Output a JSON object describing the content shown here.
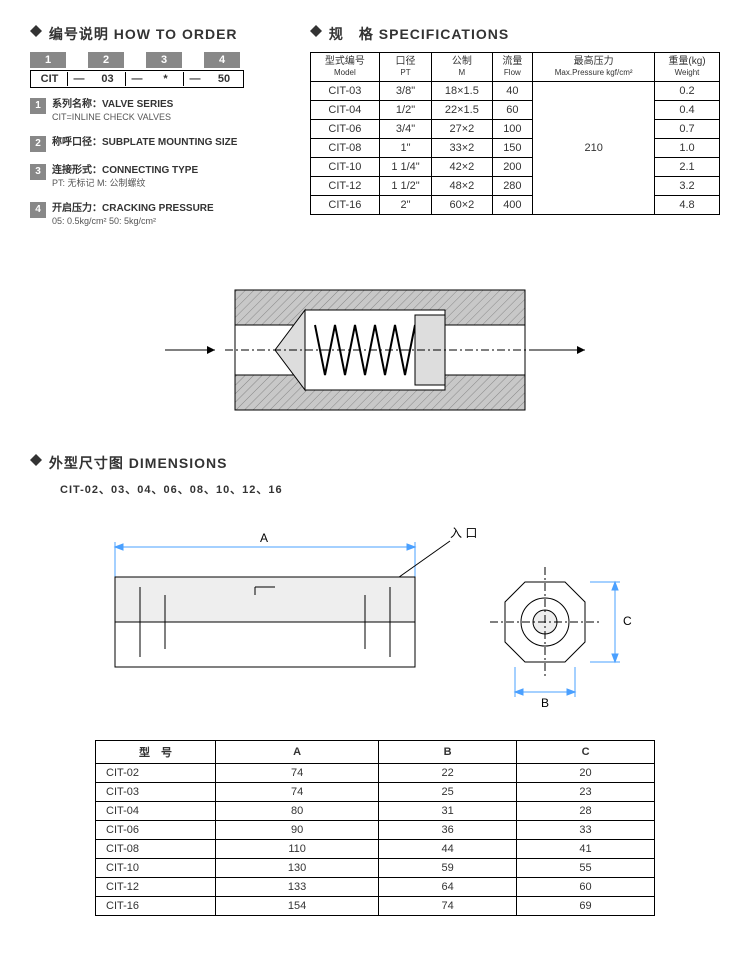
{
  "howto": {
    "title_cn": "编号说明",
    "title_en": "HOW TO ORDER",
    "numbers": [
      "1",
      "2",
      "3",
      "4"
    ],
    "codes": [
      "CIT",
      "—",
      "03",
      "—",
      "*",
      "—",
      "50"
    ],
    "legend": [
      {
        "n": "1",
        "cn": "系列名称：",
        "en": "VALVE SERIES",
        "sub": "CIT=INLINE CHECK VALVES"
      },
      {
        "n": "2",
        "cn": "称呼口径：",
        "en": "SUBPLATE MOUNTING SIZE",
        "sub": ""
      },
      {
        "n": "3",
        "cn": "连接形式：",
        "en": "CONNECTING TYPE",
        "sub": "PT: 无标记  M: 公制螺纹"
      },
      {
        "n": "4",
        "cn": "开启压力：",
        "en": "CRACKING PRESSURE",
        "sub": "05: 0.5kg/cm²  50: 5kg/cm²"
      }
    ]
  },
  "spec": {
    "title_cn": "规　格",
    "title_en": "SPECIFICATIONS",
    "cols": [
      {
        "cn": "型式编号",
        "en": "Model"
      },
      {
        "cn": "口径",
        "en": "PT"
      },
      {
        "cn": "公制",
        "en": "M"
      },
      {
        "cn": "流量",
        "en": "Flow"
      },
      {
        "cn": "最高压力",
        "en": "Max.Pressure kgf/cm²"
      },
      {
        "cn": "重量(kg)",
        "en": "Weight"
      }
    ],
    "pressure": "210",
    "rows": [
      {
        "m": "CIT-03",
        "pt": "3/8\"",
        "mm": "18×1.5",
        "flow": "40",
        "wt": "0.2"
      },
      {
        "m": "CIT-04",
        "pt": "1/2\"",
        "mm": "22×1.5",
        "flow": "60",
        "wt": "0.4"
      },
      {
        "m": "CIT-06",
        "pt": "3/4\"",
        "mm": "27×2",
        "flow": "100",
        "wt": "0.7"
      },
      {
        "m": "CIT-08",
        "pt": "1\"",
        "mm": "33×2",
        "flow": "150",
        "wt": "1.0"
      },
      {
        "m": "CIT-10",
        "pt": "1 1/4\"",
        "mm": "42×2",
        "flow": "200",
        "wt": "2.1"
      },
      {
        "m": "CIT-12",
        "pt": "1 1/2\"",
        "mm": "48×2",
        "flow": "280",
        "wt": "3.2"
      },
      {
        "m": "CIT-16",
        "pt": "2\"",
        "mm": "60×2",
        "flow": "400",
        "wt": "4.8"
      }
    ]
  },
  "dim": {
    "title_cn": "外型尺寸图",
    "title_en": "DIMENSIONS",
    "sub": "CIT-02、03、04、06、08、10、12、16",
    "inlet": "入 口",
    "letters": {
      "a": "A",
      "b": "B",
      "c": "C"
    },
    "cols": [
      "型　号",
      "A",
      "B",
      "C"
    ],
    "rows": [
      {
        "m": "CIT-02",
        "a": "74",
        "b": "22",
        "c": "20"
      },
      {
        "m": "CIT-03",
        "a": "74",
        "b": "25",
        "c": "23"
      },
      {
        "m": "CIT-04",
        "a": "80",
        "b": "31",
        "c": "28"
      },
      {
        "m": "CIT-06",
        "a": "90",
        "b": "36",
        "c": "33"
      },
      {
        "m": "CIT-08",
        "a": "110",
        "b": "44",
        "c": "41"
      },
      {
        "m": "CIT-10",
        "a": "130",
        "b": "59",
        "c": "55"
      },
      {
        "m": "CIT-12",
        "a": "133",
        "b": "64",
        "c": "60"
      },
      {
        "m": "CIT-16",
        "a": "154",
        "b": "74",
        "c": "69"
      }
    ]
  },
  "colors": {
    "hatch": "#b0b0b0",
    "dimline": "#4aa0ff"
  }
}
